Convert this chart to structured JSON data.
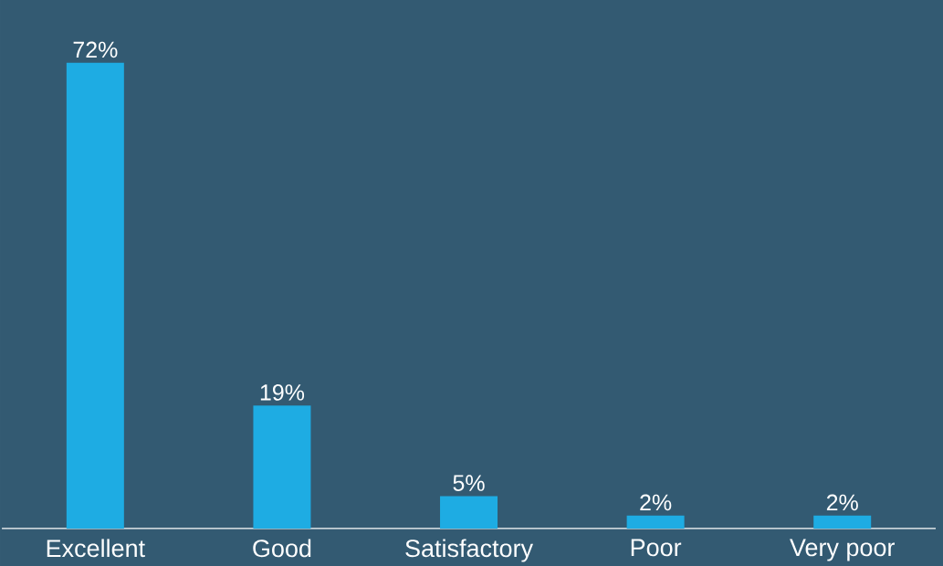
{
  "chart_data": {
    "type": "bar",
    "categories": [
      "Excellent",
      "Good",
      "Satisfactory",
      "Poor",
      "Very poor"
    ],
    "values": [
      72,
      19,
      5,
      2,
      2
    ],
    "value_labels": [
      "72%",
      "19%",
      "5%",
      "2%",
      "2%"
    ],
    "color": "#1eace3"
  }
}
